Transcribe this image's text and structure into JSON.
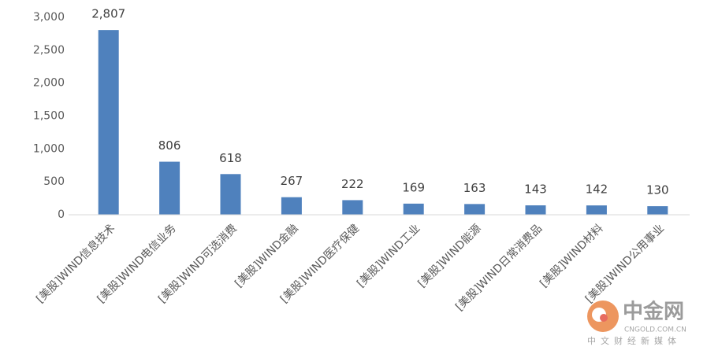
{
  "chart_data": {
    "type": "bar",
    "categories": [
      "[美股]WIND信息技术",
      "[美股]WIND电信业务",
      "[美股]WIND可选消费",
      "[美股]WIND金融",
      "[美股]WIND医疗保健",
      "[美股]WIND工业",
      "[美股]WIND能源",
      "[美股]WIND日常消费品",
      "[美股]WIND材料",
      "[美股]WIND公用事业"
    ],
    "values": [
      2807,
      806,
      618,
      267,
      222,
      169,
      163,
      143,
      142,
      130
    ],
    "value_labels": [
      "2,807",
      "806",
      "618",
      "267",
      "222",
      "169",
      "163",
      "143",
      "142",
      "130"
    ],
    "color": "#4f81bd",
    "ylim": [
      0,
      3000
    ],
    "yticks": [
      0,
      500,
      {
        "value": 1000,
        "label": "1,000"
      },
      {
        "value": 1500,
        "label": "1,500"
      },
      {
        "value": 2000,
        "label": "2,000"
      },
      {
        "value": 2500,
        "label": "2,500"
      },
      {
        "value": 3000,
        "label": "3,000"
      }
    ],
    "grid": false
  },
  "watermark": {
    "brand": "中金网",
    "domain": "CNGOLD.COM.CN",
    "slogan": "中文财经新媒体"
  }
}
